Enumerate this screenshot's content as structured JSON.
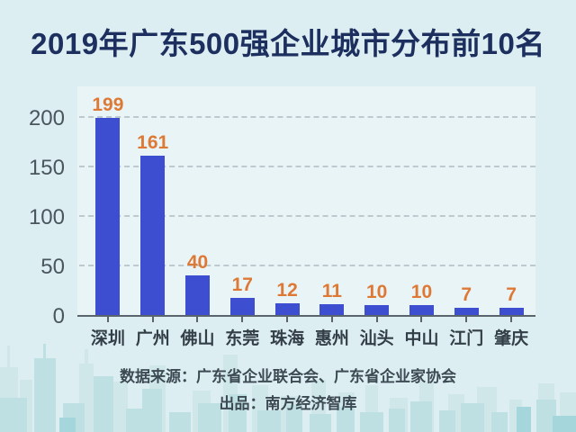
{
  "title": "2019年广东500强企业城市分布前10名",
  "chart_data": {
    "type": "bar",
    "title": "2019年广东500强企业城市分布前10名",
    "categories": [
      "深圳",
      "广州",
      "佛山",
      "东莞",
      "珠海",
      "惠州",
      "汕头",
      "中山",
      "江门",
      "肇庆"
    ],
    "values": [
      199,
      161,
      40,
      17,
      12,
      11,
      10,
      10,
      7,
      7
    ],
    "xlabel": "",
    "ylabel": "",
    "ylim": [
      0,
      220
    ],
    "yticks": [
      0,
      50,
      100,
      150,
      200
    ],
    "grid": "horizontal-dashed",
    "legend": "none",
    "bar_color": "#3d4ed1",
    "value_label_color": "#dd7935"
  },
  "footer": {
    "source_line": "数据来源：广东省企业联合会、广东省企业家协会",
    "producer_line": "出品：南方经济智库"
  },
  "colors": {
    "background": "#dceef2",
    "plot_background": "#e9f4f7",
    "title": "#1c2f5e",
    "bar": "#3d4ed1",
    "value_label": "#dd7935",
    "axis": "#59646c",
    "y_tick_label": "#4a555d",
    "x_tick_label": "#333e46",
    "gridline": "#bcc9cf",
    "footer_text": "#3d4a53",
    "skyline_back": "#cfe7e9",
    "skyline_front": "#bfe0e3",
    "skyline_accent": "#a5d6dc"
  }
}
